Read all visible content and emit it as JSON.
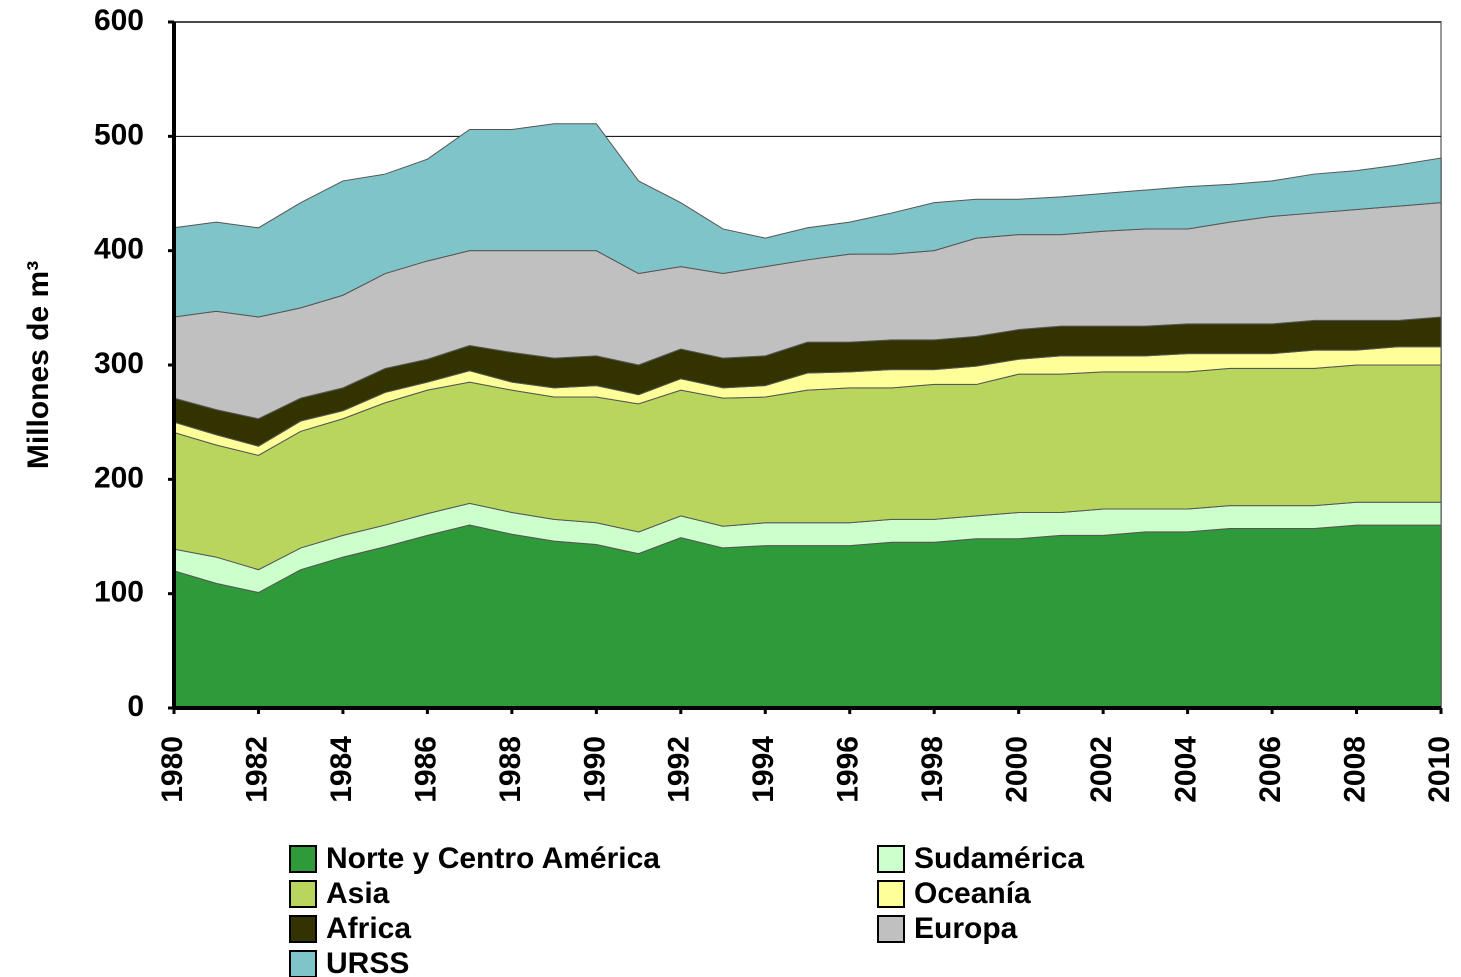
{
  "chart_data": {
    "type": "stacked_area",
    "ylabel": "Millones de m³",
    "x": [
      1980,
      1981,
      1982,
      1983,
      1984,
      1985,
      1986,
      1987,
      1988,
      1989,
      1990,
      1991,
      1992,
      1993,
      1994,
      1995,
      1996,
      1997,
      1998,
      1999,
      2000,
      2001,
      2002,
      2003,
      2004,
      2005,
      2006,
      2007,
      2008,
      2009,
      2010
    ],
    "xlim": [
      1980,
      2010
    ],
    "xticks": [
      1980,
      1982,
      1984,
      1986,
      1988,
      1990,
      1992,
      1994,
      1996,
      1998,
      2000,
      2002,
      2004,
      2006,
      2008,
      2010
    ],
    "ylim": [
      0,
      600
    ],
    "yticks": [
      0,
      100,
      200,
      300,
      400,
      500,
      600
    ],
    "grid": true,
    "legend": "bottom",
    "series": [
      {
        "name": "Norte y Centro América",
        "color": "#2f9a3a",
        "values": [
          120,
          109,
          101,
          121,
          132,
          141,
          151,
          160,
          152,
          146,
          143,
          135,
          149,
          140,
          142,
          142,
          142,
          145,
          145,
          148,
          148,
          151,
          151,
          154,
          154,
          157,
          157,
          157,
          160,
          160,
          160
        ]
      },
      {
        "name": "Sudamérica",
        "color": "#ccffcc",
        "values": [
          19,
          23,
          20,
          19,
          19,
          19,
          19,
          19,
          19,
          19,
          19,
          19,
          19,
          19,
          20,
          20,
          20,
          20,
          20,
          20,
          23,
          20,
          23,
          20,
          20,
          20,
          20,
          20,
          20,
          20,
          20
        ]
      },
      {
        "name": "Asia",
        "color": "#b8d65e",
        "values": [
          102,
          98,
          100,
          102,
          102,
          107,
          108,
          106,
          107,
          107,
          110,
          112,
          110,
          112,
          110,
          116,
          118,
          115,
          118,
          115,
          121,
          121,
          120,
          120,
          120,
          120,
          120,
          120,
          120,
          120,
          120
        ]
      },
      {
        "name": "Oceanía",
        "color": "#ffff99",
        "values": [
          9,
          9,
          8,
          9,
          7,
          9,
          7,
          10,
          7,
          8,
          10,
          8,
          10,
          9,
          10,
          15,
          14,
          16,
          13,
          16,
          13,
          16,
          14,
          14,
          16,
          13,
          13,
          16,
          13,
          16,
          16
        ]
      },
      {
        "name": "Africa",
        "color": "#333300",
        "values": [
          21,
          22,
          24,
          20,
          20,
          21,
          20,
          22,
          26,
          26,
          26,
          26,
          26,
          26,
          26,
          27,
          26,
          26,
          26,
          26,
          26,
          26,
          26,
          26,
          26,
          26,
          26,
          26,
          26,
          23,
          26
        ]
      },
      {
        "name": "Europa",
        "color": "#c0c0c0",
        "values": [
          71,
          86,
          89,
          79,
          81,
          83,
          86,
          83,
          89,
          94,
          92,
          80,
          72,
          74,
          78,
          72,
          77,
          75,
          78,
          86,
          83,
          80,
          83,
          85,
          83,
          89,
          94,
          94,
          97,
          100,
          100
        ]
      },
      {
        "name": "URSS",
        "color": "#7fc4c9",
        "values": [
          78,
          78,
          78,
          92,
          100,
          87,
          89,
          106,
          106,
          111,
          111,
          81,
          56,
          39,
          25,
          28,
          28,
          36,
          42,
          34,
          31,
          33,
          33,
          34,
          37,
          33,
          31,
          34,
          34,
          36,
          39
        ]
      }
    ]
  }
}
